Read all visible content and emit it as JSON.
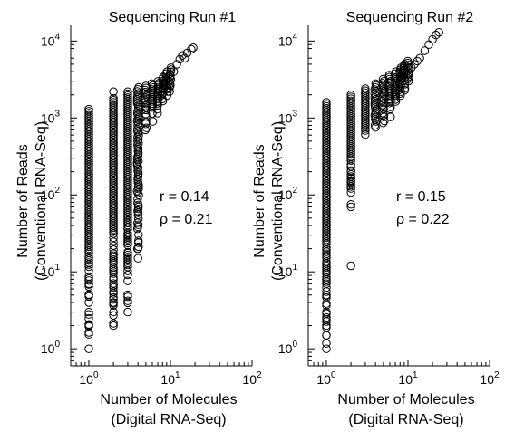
{
  "chart_data": [
    {
      "type": "scatter",
      "title": "Sequencing Run #1",
      "xlabel": [
        "Number of Molecules",
        "(Digital RNA-Seq)"
      ],
      "ylabel": [
        "Number of Reads",
        "(Conventional RNA-Seq)"
      ],
      "xscale": "log",
      "yscale": "log",
      "xlim": [
        0.6,
        100
      ],
      "ylim": [
        0.6,
        16000
      ],
      "xticks": [
        {
          "base": "10",
          "exp": "0",
          "value": 1
        },
        {
          "base": "10",
          "exp": "1",
          "value": 10
        },
        {
          "base": "10",
          "exp": "2",
          "value": 100
        }
      ],
      "yticks": [
        {
          "base": "10",
          "exp": "0",
          "value": 1
        },
        {
          "base": "10",
          "exp": "1",
          "value": 10
        },
        {
          "base": "10",
          "exp": "2",
          "value": 100
        },
        {
          "base": "10",
          "exp": "3",
          "value": 1000
        },
        {
          "base": "10",
          "exp": "4",
          "value": 10000
        }
      ],
      "annotations": [
        "r  = 0.14",
        "ρ = 0.21"
      ],
      "columns": [
        {
          "x": 1,
          "y_min": 1,
          "y_max": 1300
        },
        {
          "x": 2,
          "y_min": 2,
          "y_max": 1700
        },
        {
          "x": 3,
          "y_min": 3,
          "y_max": 2200
        },
        {
          "x": 4,
          "y_min": 15,
          "y_max": 2500
        },
        {
          "x": 5,
          "y_min": 700,
          "y_max": 2600
        },
        {
          "x": 6,
          "y_min": 900,
          "y_max": 2800
        },
        {
          "x": 7,
          "y_min": 1000,
          "y_max": 3000
        },
        {
          "x": 8,
          "y_min": 1200,
          "y_max": 3400
        },
        {
          "x": 9,
          "y_min": 1500,
          "y_max": 4000
        },
        {
          "x": 10,
          "y_min": 2000,
          "y_max": 4500
        }
      ],
      "points": [
        [
          1,
          1
        ],
        [
          1,
          2
        ],
        [
          1,
          3
        ],
        [
          1,
          5
        ],
        [
          1,
          7
        ],
        [
          2,
          2
        ],
        [
          2,
          3
        ],
        [
          2,
          4
        ],
        [
          3,
          3
        ],
        [
          3,
          18
        ],
        [
          3,
          25
        ],
        [
          3,
          30
        ],
        [
          4,
          15
        ],
        [
          4,
          20
        ],
        [
          2,
          2200
        ],
        [
          2,
          1800
        ],
        [
          11,
          4000
        ],
        [
          12,
          5000
        ],
        [
          14,
          6500
        ],
        [
          16,
          7000
        ],
        [
          18,
          7800
        ],
        [
          19,
          8200
        ],
        [
          13,
          5800
        ],
        [
          15,
          6000
        ]
      ]
    },
    {
      "type": "scatter",
      "title": "Sequencing Run #2",
      "xlabel": [
        "Number of Molecules",
        "(Digital RNA-Seq)"
      ],
      "ylabel": [
        "Number of Reads",
        "(Conventional RNA-Seq)"
      ],
      "xscale": "log",
      "yscale": "log",
      "xlim": [
        0.6,
        100
      ],
      "ylim": [
        0.6,
        16000
      ],
      "xticks": [
        {
          "base": "10",
          "exp": "0",
          "value": 1
        },
        {
          "base": "10",
          "exp": "1",
          "value": 10
        },
        {
          "base": "10",
          "exp": "2",
          "value": 100
        }
      ],
      "yticks": [
        {
          "base": "10",
          "exp": "0",
          "value": 1
        },
        {
          "base": "10",
          "exp": "1",
          "value": 10
        },
        {
          "base": "10",
          "exp": "2",
          "value": 100
        },
        {
          "base": "10",
          "exp": "3",
          "value": 1000
        },
        {
          "base": "10",
          "exp": "4",
          "value": 10000
        }
      ],
      "annotations": [
        "r  = 0.15",
        "ρ = 0.22"
      ],
      "columns": [
        {
          "x": 1,
          "y_min": 1,
          "y_max": 1600
        },
        {
          "x": 2,
          "y_min": 70,
          "y_max": 2000
        },
        {
          "x": 3,
          "y_min": 400,
          "y_max": 2400
        },
        {
          "x": 4,
          "y_min": 600,
          "y_max": 2800
        },
        {
          "x": 5,
          "y_min": 800,
          "y_max": 3200
        },
        {
          "x": 6,
          "y_min": 1000,
          "y_max": 3600
        },
        {
          "x": 7,
          "y_min": 1300,
          "y_max": 4000
        },
        {
          "x": 8,
          "y_min": 1600,
          "y_max": 4500
        },
        {
          "x": 9,
          "y_min": 1900,
          "y_max": 5000
        },
        {
          "x": 10,
          "y_min": 2200,
          "y_max": 5500
        }
      ],
      "points": [
        [
          1,
          1
        ],
        [
          1,
          1.5
        ],
        [
          1,
          2
        ],
        [
          1,
          3
        ],
        [
          1,
          5
        ],
        [
          1,
          8
        ],
        [
          2,
          12
        ],
        [
          2,
          70
        ],
        [
          2,
          150
        ],
        [
          2,
          200
        ],
        [
          11,
          4500
        ],
        [
          12,
          5000
        ],
        [
          13,
          5500
        ],
        [
          14,
          6000
        ],
        [
          16,
          7500
        ],
        [
          18,
          9000
        ],
        [
          20,
          10500
        ],
        [
          22,
          12000
        ],
        [
          24,
          13000
        ]
      ]
    }
  ]
}
